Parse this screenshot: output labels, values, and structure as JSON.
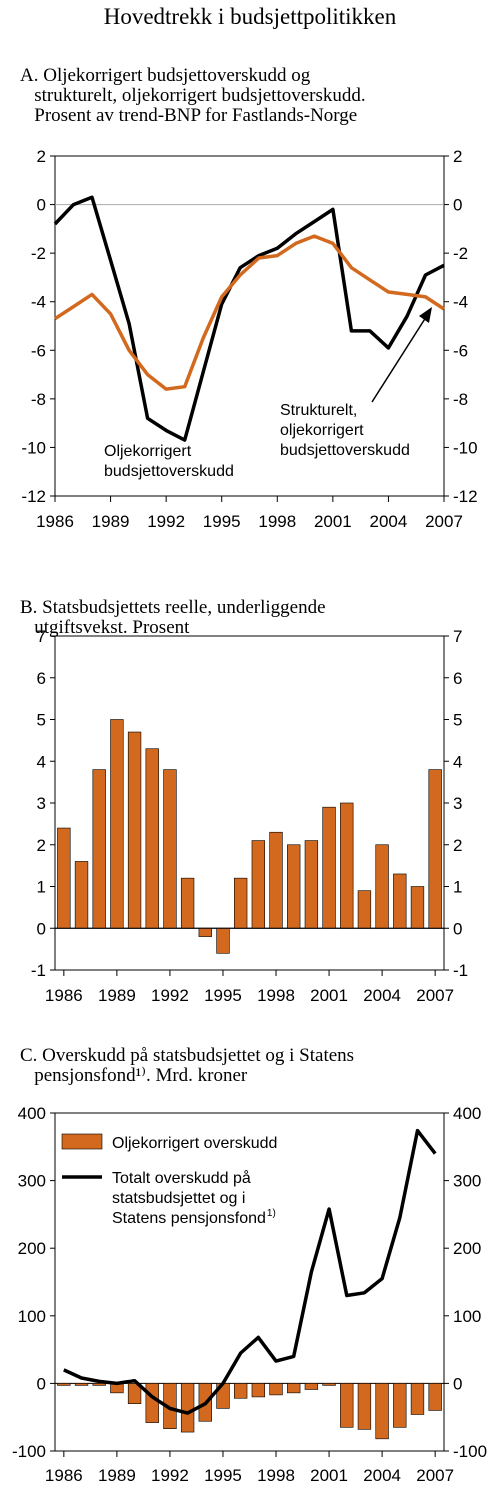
{
  "title": "Hovedtrekk i budsjettpolitikken",
  "colors": {
    "orange": "#D2691E",
    "black": "#000000",
    "grid": "#AAAAAA"
  },
  "chart_data": [
    {
      "id": "A",
      "type": "line",
      "title_lines": [
        "A. Oljekorrigert budsjettoverskudd og",
        "strukturelt, oljekorrigert budsjettoverskudd.",
        "Prosent av trend-BNP for Fastlands-Norge"
      ],
      "x": [
        1986,
        1987,
        1988,
        1989,
        1990,
        1991,
        1992,
        1993,
        1994,
        1995,
        1996,
        1997,
        1998,
        1999,
        2000,
        2001,
        2002,
        2003,
        2004,
        2005,
        2006,
        2007
      ],
      "ylim": [
        -12,
        2
      ],
      "yticks": [
        2,
        0,
        -2,
        -4,
        -6,
        -8,
        -10,
        -12
      ],
      "xticks": [
        1986,
        1989,
        1992,
        1995,
        1998,
        2001,
        2004,
        2007
      ],
      "series": [
        {
          "name": "Oljekorrigert budsjettoverskudd",
          "color": "#000000",
          "values": [
            -0.8,
            0.0,
            0.3,
            -2.3,
            -4.9,
            -8.8,
            -9.3,
            -9.7,
            -6.9,
            -4.1,
            -2.6,
            -2.1,
            -1.8,
            -1.2,
            -0.7,
            -0.2,
            -5.2,
            -5.2,
            -5.9,
            -4.6,
            -2.9,
            -2.5
          ]
        },
        {
          "name": "Strukturelt, oljekorrigert budsjettoverskudd",
          "color": "#D2691E",
          "values": [
            -4.7,
            -4.2,
            -3.7,
            -4.5,
            -6.0,
            -7.0,
            -7.6,
            -7.5,
            -5.5,
            -3.8,
            -2.9,
            -2.2,
            -2.1,
            -1.6,
            -1.3,
            -1.6,
            -2.6,
            -3.1,
            -3.6,
            -3.7,
            -3.8,
            -4.3
          ]
        }
      ],
      "annotations": {
        "black_label": [
          "Oljekorrigert",
          "budsjettoverskudd"
        ],
        "orange_label": [
          "Strukturelt,",
          "oljekorrigert",
          "budsjettoverskudd"
        ]
      }
    },
    {
      "id": "B",
      "type": "bar",
      "title_lines": [
        "B. Statsbudsjettets reelle, underliggende",
        "utgiftsvekst. Prosent"
      ],
      "categories": [
        1986,
        1987,
        1988,
        1989,
        1990,
        1991,
        1992,
        1993,
        1994,
        1995,
        1996,
        1997,
        1998,
        1999,
        2000,
        2001,
        2002,
        2003,
        2004,
        2005,
        2006,
        2007
      ],
      "values": [
        2.4,
        1.6,
        3.8,
        5.0,
        4.7,
        4.3,
        3.8,
        1.2,
        -0.2,
        -0.6,
        1.2,
        2.1,
        2.3,
        2.0,
        2.1,
        2.9,
        3.0,
        0.9,
        2.0,
        1.3,
        1.0,
        3.8
      ],
      "ylim": [
        -1,
        7
      ],
      "yticks": [
        7,
        6,
        5,
        4,
        3,
        2,
        1,
        0,
        -1
      ],
      "xticks": [
        1986,
        1989,
        1992,
        1995,
        1998,
        2001,
        2004,
        2007
      ]
    },
    {
      "id": "C",
      "type": "bar",
      "title_lines": [
        "C. Overskudd på statsbudsjettet og i Statens",
        "pensjonsfond¹⁾. Mrd. kroner"
      ],
      "categories": [
        1986,
        1987,
        1988,
        1989,
        1990,
        1991,
        1992,
        1993,
        1994,
        1995,
        1996,
        1997,
        1998,
        1999,
        2000,
        2001,
        2002,
        2003,
        2004,
        2005,
        2006,
        2007
      ],
      "series": [
        {
          "name": "Oljekorrigert overskudd",
          "color": "#D2691E",
          "kind": "bar",
          "values": [
            -2,
            -1,
            0,
            -14,
            -30,
            -58,
            -67,
            -72,
            -56,
            -37,
            -22,
            -20,
            -17,
            -14,
            -9,
            -2,
            -65,
            -68,
            -82,
            -65,
            -46,
            -40
          ]
        },
        {
          "name": "Totalt overskudd på statsbudsjettet og i Statens pensjonsfond",
          "color": "#000000",
          "kind": "line",
          "values": [
            20,
            8,
            3,
            0,
            4,
            -20,
            -37,
            -44,
            -30,
            0,
            45,
            68,
            33,
            40,
            165,
            258,
            130,
            134,
            155,
            245,
            374,
            340
          ]
        }
      ],
      "legend": {
        "bar_label": "Oljekorrigert overskudd",
        "line_label_lines": [
          "Totalt overskudd på",
          "statsbudsjettet og i",
          "Statens pensjonsfond"
        ],
        "footnote_mark": "1)"
      },
      "ylim": [
        -100,
        400
      ],
      "yticks": [
        400,
        300,
        200,
        100,
        0,
        -100
      ],
      "xticks": [
        1986,
        1989,
        1992,
        1995,
        1998,
        2001,
        2004,
        2007
      ]
    }
  ]
}
